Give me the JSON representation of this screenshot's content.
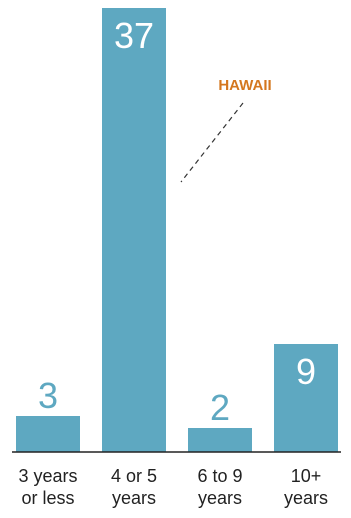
{
  "chart_data": {
    "type": "bar",
    "categories": [
      [
        "3 years",
        "or less"
      ],
      [
        "4 or 5",
        "years"
      ],
      [
        "6 to 9",
        "years"
      ],
      [
        "10+",
        "years"
      ]
    ],
    "values": [
      3,
      37,
      2,
      9
    ],
    "ylim": [
      0,
      37
    ],
    "grid": false,
    "annotation": {
      "text": "HAWAII",
      "target_category_index": 1
    },
    "colors": {
      "bar": "#5ea8c1",
      "value_label_outside": "#5ea8c1",
      "value_label_inside": "#ffffff",
      "annotation": "#d4771f",
      "axis": "#222222"
    }
  }
}
